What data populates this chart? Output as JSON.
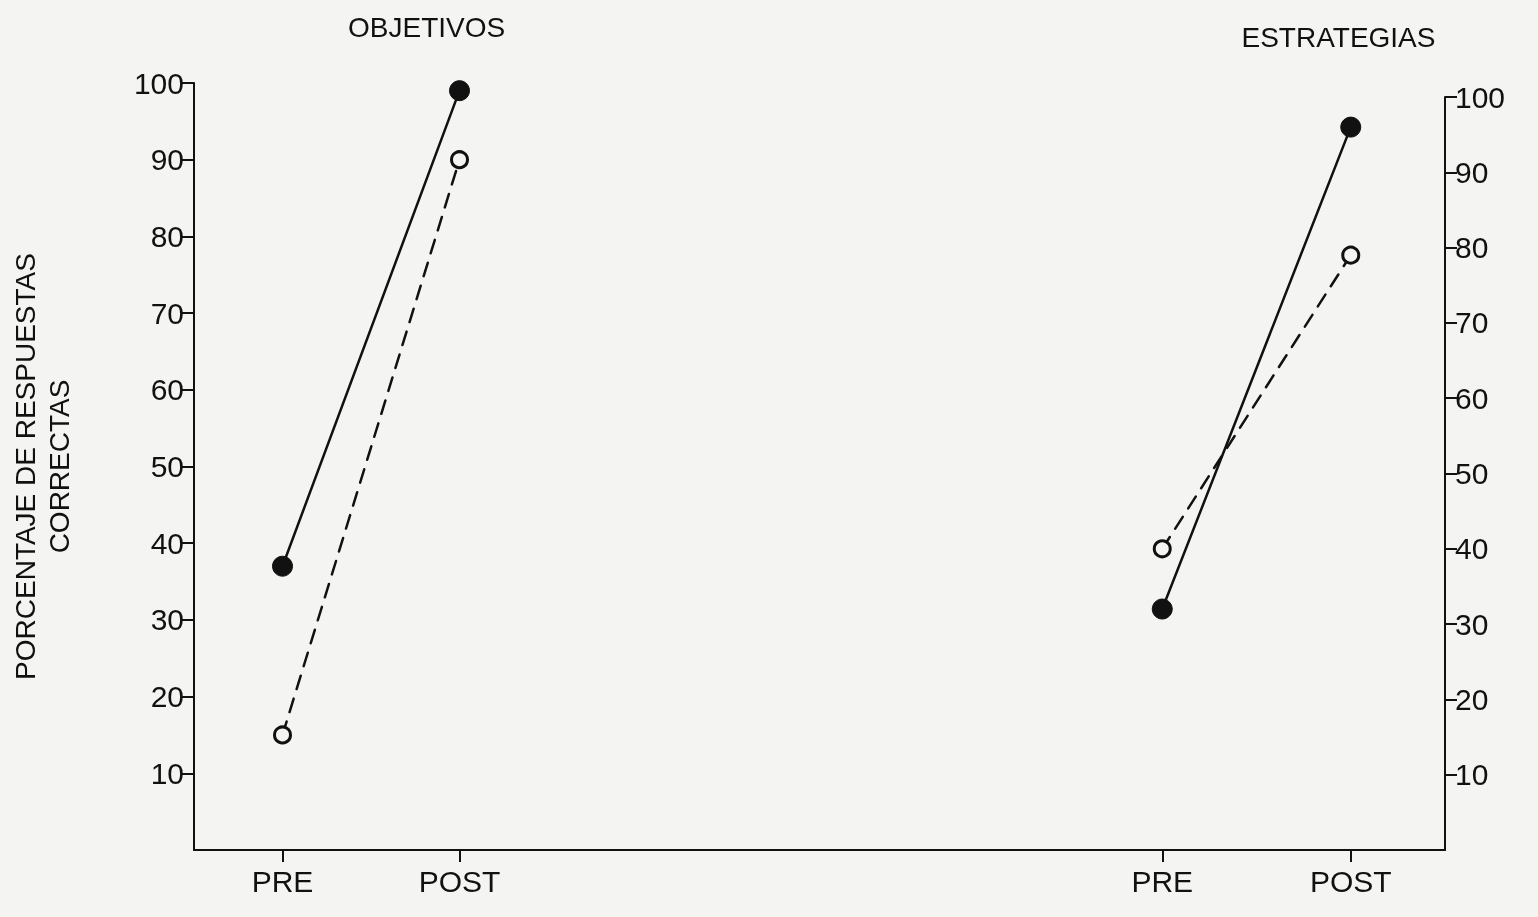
{
  "chart_data": [
    {
      "type": "line",
      "title": "OBJETIVOS",
      "ylabel": "PORCENTAJE DE RESPUESTAS\nCORRECTAS",
      "categories": [
        "PRE",
        "POST"
      ],
      "series": [
        {
          "color": "#111111",
          "values": [
            37,
            99
          ],
          "line_style": "solid"
        },
        {
          "color": "#111111",
          "values": [
            15,
            90
          ],
          "line_style": "dashed"
        }
      ],
      "ylim": [
        0,
        100
      ],
      "yticks": [
        10,
        20,
        30,
        40,
        50,
        60,
        70,
        80,
        90,
        100
      ],
      "marker": "circle"
    },
    {
      "type": "line",
      "title": "ESTRATEGIAS",
      "categories": [
        "PRE",
        "POST"
      ],
      "series": [
        {
          "color": "#111111",
          "values": [
            32,
            96
          ],
          "line_style": "solid"
        },
        {
          "color": "#111111",
          "values": [
            40,
            79
          ],
          "line_style": "dashed"
        }
      ],
      "ylim": [
        0,
        100
      ],
      "yticks": [
        10,
        20,
        30,
        40,
        50,
        60,
        70,
        80,
        90,
        100
      ],
      "marker": "circle"
    }
  ]
}
